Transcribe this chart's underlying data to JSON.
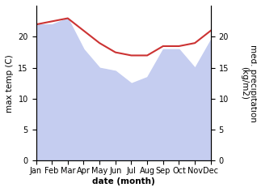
{
  "months": [
    "Jan",
    "Feb",
    "Mar",
    "Apr",
    "May",
    "Jun",
    "Jul",
    "Aug",
    "Sep",
    "Oct",
    "Nov",
    "Dec"
  ],
  "max_temp": [
    22.0,
    22.5,
    23.0,
    21.0,
    19.0,
    17.5,
    17.0,
    17.0,
    18.5,
    18.5,
    19.0,
    21.0
  ],
  "precipitation": [
    22.0,
    22.0,
    23.0,
    18.0,
    15.0,
    14.5,
    12.5,
    13.5,
    18.0,
    18.0,
    15.0,
    19.5
  ],
  "temp_color": "#cc3333",
  "precip_fill_color": "#c5cdf0",
  "xlabel": "date (month)",
  "ylabel_left": "max temp (C)",
  "ylabel_right": "med. precipitation\n(kg/m2)",
  "ylim_left": [
    0,
    25
  ],
  "ylim_right": [
    0,
    25
  ],
  "yticks_left": [
    0,
    5,
    10,
    15,
    20
  ],
  "yticks_right": [
    0,
    5,
    10,
    15,
    20
  ],
  "bg_color": "#ffffff",
  "label_fontsize": 7.5,
  "tick_fontsize": 7.0
}
